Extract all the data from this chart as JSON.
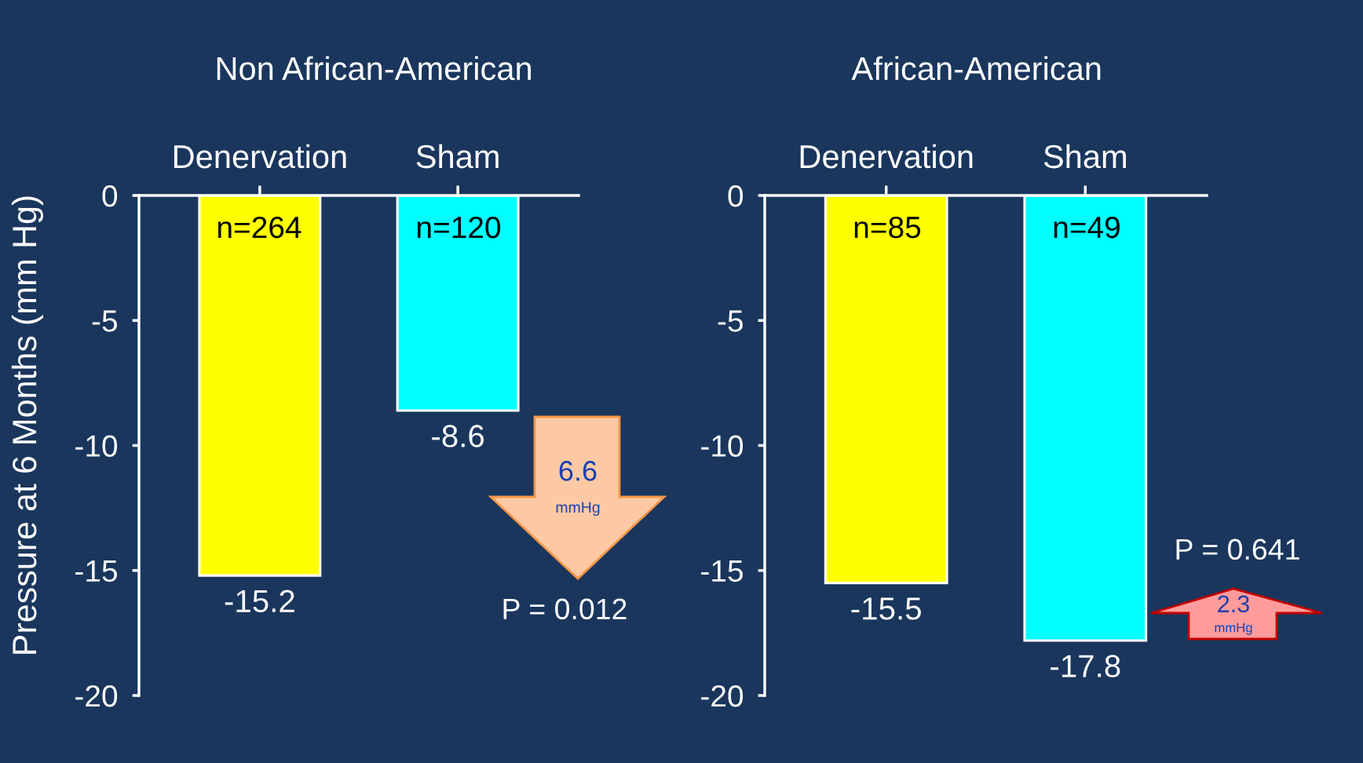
{
  "chart_data": [
    {
      "type": "bar",
      "title": "Non African-American",
      "ylabel": "Pressure at 6 Months (mm Hg)",
      "categories": [
        "Denervation",
        "Sham"
      ],
      "values": [
        -15.2,
        -8.6
      ],
      "colors": [
        "#ffff00",
        "#00ffff"
      ],
      "ylim": [
        -20,
        0
      ],
      "yticks": [
        0,
        -5,
        -10,
        -15,
        -20
      ],
      "data_labels": true,
      "annotations": [
        "n=264",
        "n=120",
        "6.6",
        "mmHg",
        "P = 0.012"
      ]
    },
    {
      "type": "bar",
      "title": "African-American",
      "categories": [
        "Denervation",
        "Sham"
      ],
      "values": [
        -15.5,
        -17.8
      ],
      "colors": [
        "#ffff00",
        "#00ffff"
      ],
      "ylim": [
        -20,
        0
      ],
      "yticks": [
        0,
        -5,
        -10,
        -15,
        -20
      ],
      "data_labels": true,
      "annotations": [
        "n=85",
        "n=49",
        "2.3",
        "mmHg",
        "P = 0.641"
      ]
    }
  ]
}
